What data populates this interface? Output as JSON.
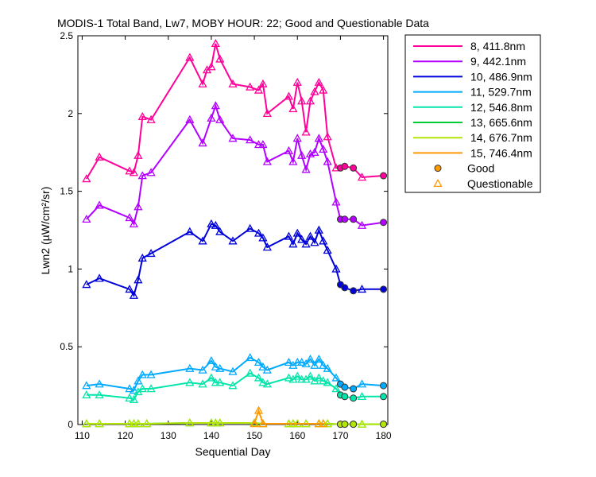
{
  "chart_data": {
    "type": "line",
    "title": "MODIS-1 Total Band, Lw7, MOBY HOUR: 22;  Good and Questionable Data",
    "xlabel": "Sequential Day",
    "ylabel": "Lwn2 (µW/cm²/sr)",
    "xlim": [
      109,
      181
    ],
    "ylim": [
      0,
      2.5
    ],
    "xticks": [
      110,
      120,
      130,
      140,
      150,
      160,
      170,
      180
    ],
    "yticks": [
      0,
      0.5,
      1,
      1.5,
      2,
      2.5
    ],
    "ytick_labels": [
      "0",
      "0.5",
      "1",
      "1.5",
      "2",
      "2.5"
    ],
    "grid": false,
    "legend_position": "outside-right",
    "marker_legend": [
      {
        "label": "Good",
        "marker": "circle",
        "color": "#ff9900"
      },
      {
        "label": "Questionable",
        "marker": "triangle",
        "color": "#ff9900"
      }
    ],
    "series": [
      {
        "name": "8, 411.8nm",
        "color": "#ff0099",
        "x": [
          111,
          114,
          121,
          122,
          123,
          124,
          126,
          135,
          138,
          139,
          140,
          141,
          142,
          145,
          149,
          151,
          152,
          153,
          158,
          159,
          160,
          161,
          162,
          163,
          164,
          165,
          166,
          167,
          169,
          170,
          171,
          173,
          175,
          180
        ],
        "y": [
          1.58,
          1.72,
          1.63,
          1.62,
          1.73,
          1.98,
          1.96,
          2.36,
          2.19,
          2.28,
          2.3,
          2.45,
          2.35,
          2.19,
          2.17,
          2.15,
          2.19,
          2.0,
          2.11,
          2.03,
          2.2,
          2.08,
          1.88,
          2.08,
          2.14,
          2.2,
          2.15,
          1.85,
          1.65,
          1.65,
          1.66,
          1.65,
          1.59,
          1.6
        ],
        "quality": [
          "Q",
          "Q",
          "Q",
          "Q",
          "Q",
          "Q",
          "Q",
          "Q",
          "Q",
          "Q",
          "Q",
          "Q",
          "Q",
          "Q",
          "Q",
          "Q",
          "Q",
          "Q",
          "Q",
          "Q",
          "Q",
          "Q",
          "Q",
          "Q",
          "Q",
          "Q",
          "Q",
          "Q",
          "Q",
          "G",
          "G",
          "G",
          "Q",
          "G"
        ]
      },
      {
        "name": "9, 442.1nm",
        "color": "#b300ff",
        "x": [
          111,
          114,
          121,
          122,
          123,
          124,
          126,
          135,
          138,
          140,
          141,
          142,
          145,
          149,
          151,
          152,
          153,
          158,
          159,
          160,
          161,
          162,
          163,
          164,
          165,
          166,
          167,
          169,
          170,
          171,
          173,
          175,
          180
        ],
        "y": [
          1.32,
          1.41,
          1.33,
          1.29,
          1.4,
          1.6,
          1.62,
          1.96,
          1.81,
          1.97,
          2.05,
          1.96,
          1.84,
          1.83,
          1.8,
          1.8,
          1.69,
          1.76,
          1.69,
          1.84,
          1.73,
          1.64,
          1.74,
          1.75,
          1.84,
          1.77,
          1.69,
          1.43,
          1.32,
          1.32,
          1.32,
          1.28,
          1.3
        ],
        "quality": [
          "Q",
          "Q",
          "Q",
          "Q",
          "Q",
          "Q",
          "Q",
          "Q",
          "Q",
          "Q",
          "Q",
          "Q",
          "Q",
          "Q",
          "Q",
          "Q",
          "Q",
          "Q",
          "Q",
          "Q",
          "Q",
          "Q",
          "Q",
          "Q",
          "Q",
          "Q",
          "Q",
          "Q",
          "G",
          "G",
          "G",
          "Q",
          "G"
        ]
      },
      {
        "name": "10, 486.9nm",
        "color": "#0000d9",
        "x": [
          111,
          114,
          121,
          122,
          123,
          124,
          126,
          135,
          138,
          140,
          141,
          142,
          145,
          149,
          151,
          152,
          153,
          158,
          159,
          160,
          161,
          162,
          163,
          164,
          165,
          166,
          167,
          169,
          170,
          171,
          173,
          175,
          180
        ],
        "y": [
          0.9,
          0.94,
          0.87,
          0.83,
          0.93,
          1.07,
          1.1,
          1.24,
          1.18,
          1.29,
          1.28,
          1.24,
          1.18,
          1.26,
          1.23,
          1.2,
          1.14,
          1.21,
          1.16,
          1.23,
          1.19,
          1.16,
          1.21,
          1.17,
          1.25,
          1.18,
          1.12,
          1.0,
          0.9,
          0.88,
          0.86,
          0.87,
          0.87
        ],
        "quality": [
          "Q",
          "Q",
          "Q",
          "Q",
          "Q",
          "Q",
          "Q",
          "Q",
          "Q",
          "Q",
          "Q",
          "Q",
          "Q",
          "Q",
          "Q",
          "Q",
          "Q",
          "Q",
          "Q",
          "Q",
          "Q",
          "Q",
          "Q",
          "Q",
          "Q",
          "Q",
          "Q",
          "Q",
          "G",
          "G",
          "G",
          "Q",
          "G"
        ]
      },
      {
        "name": "11, 529.7nm",
        "color": "#00aaff",
        "x": [
          111,
          114,
          121,
          122,
          123,
          124,
          126,
          135,
          138,
          140,
          141,
          142,
          145,
          149,
          151,
          152,
          153,
          158,
          159,
          160,
          161,
          162,
          163,
          164,
          165,
          166,
          167,
          169,
          170,
          171,
          173,
          175,
          180
        ],
        "y": [
          0.25,
          0.26,
          0.23,
          0.22,
          0.28,
          0.32,
          0.32,
          0.36,
          0.35,
          0.41,
          0.37,
          0.36,
          0.34,
          0.43,
          0.4,
          0.37,
          0.35,
          0.4,
          0.38,
          0.4,
          0.4,
          0.39,
          0.42,
          0.38,
          0.42,
          0.38,
          0.36,
          0.3,
          0.26,
          0.24,
          0.23,
          0.26,
          0.25
        ],
        "quality": [
          "Q",
          "Q",
          "Q",
          "Q",
          "Q",
          "Q",
          "Q",
          "Q",
          "Q",
          "Q",
          "Q",
          "Q",
          "Q",
          "Q",
          "Q",
          "Q",
          "Q",
          "Q",
          "Q",
          "Q",
          "Q",
          "Q",
          "Q",
          "Q",
          "Q",
          "Q",
          "Q",
          "Q",
          "G",
          "G",
          "G",
          "Q",
          "G"
        ]
      },
      {
        "name": "12, 546.8nm",
        "color": "#00e6aa",
        "x": [
          111,
          114,
          121,
          122,
          123,
          124,
          126,
          135,
          138,
          140,
          141,
          142,
          145,
          149,
          151,
          152,
          153,
          158,
          159,
          160,
          161,
          162,
          163,
          164,
          165,
          166,
          167,
          169,
          170,
          171,
          173,
          175,
          180
        ],
        "y": [
          0.19,
          0.19,
          0.17,
          0.16,
          0.21,
          0.23,
          0.23,
          0.27,
          0.26,
          0.3,
          0.27,
          0.27,
          0.25,
          0.33,
          0.3,
          0.27,
          0.26,
          0.3,
          0.29,
          0.31,
          0.29,
          0.29,
          0.31,
          0.28,
          0.3,
          0.28,
          0.27,
          0.23,
          0.19,
          0.18,
          0.17,
          0.18,
          0.18
        ],
        "quality": [
          "Q",
          "Q",
          "Q",
          "Q",
          "Q",
          "Q",
          "Q",
          "Q",
          "Q",
          "Q",
          "Q",
          "Q",
          "Q",
          "Q",
          "Q",
          "Q",
          "Q",
          "Q",
          "Q",
          "Q",
          "Q",
          "Q",
          "Q",
          "Q",
          "Q",
          "Q",
          "Q",
          "Q",
          "G",
          "G",
          "G",
          "Q",
          "G"
        ]
      },
      {
        "name": "13, 665.6nm",
        "color": "#00cc33",
        "x": [
          111,
          114,
          121,
          122,
          123,
          125,
          135,
          140,
          141,
          142,
          150,
          152,
          158,
          159,
          160,
          162,
          165,
          166,
          167,
          170,
          171,
          173,
          175,
          180
        ],
        "y": [
          0.005,
          0.005,
          0.005,
          0.005,
          0.005,
          0.005,
          0.01,
          0.01,
          0.01,
          0.01,
          0.01,
          0.005,
          0.005,
          0.005,
          0.005,
          0.005,
          0.005,
          0.005,
          0.005,
          0.002,
          0.002,
          0.002,
          0.002,
          0.002
        ],
        "quality": [
          "Q",
          "Q",
          "Q",
          "Q",
          "Q",
          "Q",
          "Q",
          "Q",
          "Q",
          "Q",
          "Q",
          "Q",
          "Q",
          "Q",
          "Q",
          "Q",
          "Q",
          "Q",
          "Q",
          "G",
          "G",
          "G",
          "Q",
          "G"
        ]
      },
      {
        "name": "14, 676.7nm",
        "color": "#b3e600",
        "x": [
          111,
          114,
          121,
          122,
          123,
          125,
          135,
          140,
          141,
          142,
          150,
          152,
          158,
          159,
          160,
          162,
          165,
          166,
          167,
          170,
          171,
          173,
          175,
          180
        ],
        "y": [
          0.005,
          0.005,
          0.005,
          0.005,
          0.005,
          0.005,
          0.01,
          0.01,
          0.01,
          0.01,
          0.01,
          0.005,
          0.005,
          0.005,
          0.005,
          0.005,
          0.005,
          0.005,
          0.005,
          0.002,
          0.002,
          0.002,
          0.002,
          0.002
        ],
        "quality": [
          "Q",
          "Q",
          "Q",
          "Q",
          "Q",
          "Q",
          "Q",
          "Q",
          "Q",
          "Q",
          "Q",
          "Q",
          "Q",
          "Q",
          "Q",
          "Q",
          "Q",
          "Q",
          "Q",
          "G",
          "G",
          "G",
          "Q",
          "G"
        ]
      },
      {
        "name": "15, 746.4nm",
        "color": "#ff9900",
        "x": [
          150,
          151,
          152,
          165,
          166
        ],
        "y": [
          0.005,
          0.09,
          0.005,
          0.005,
          0.005
        ],
        "quality": [
          "Q",
          "Q",
          "Q",
          "Q",
          "Q"
        ]
      }
    ]
  }
}
